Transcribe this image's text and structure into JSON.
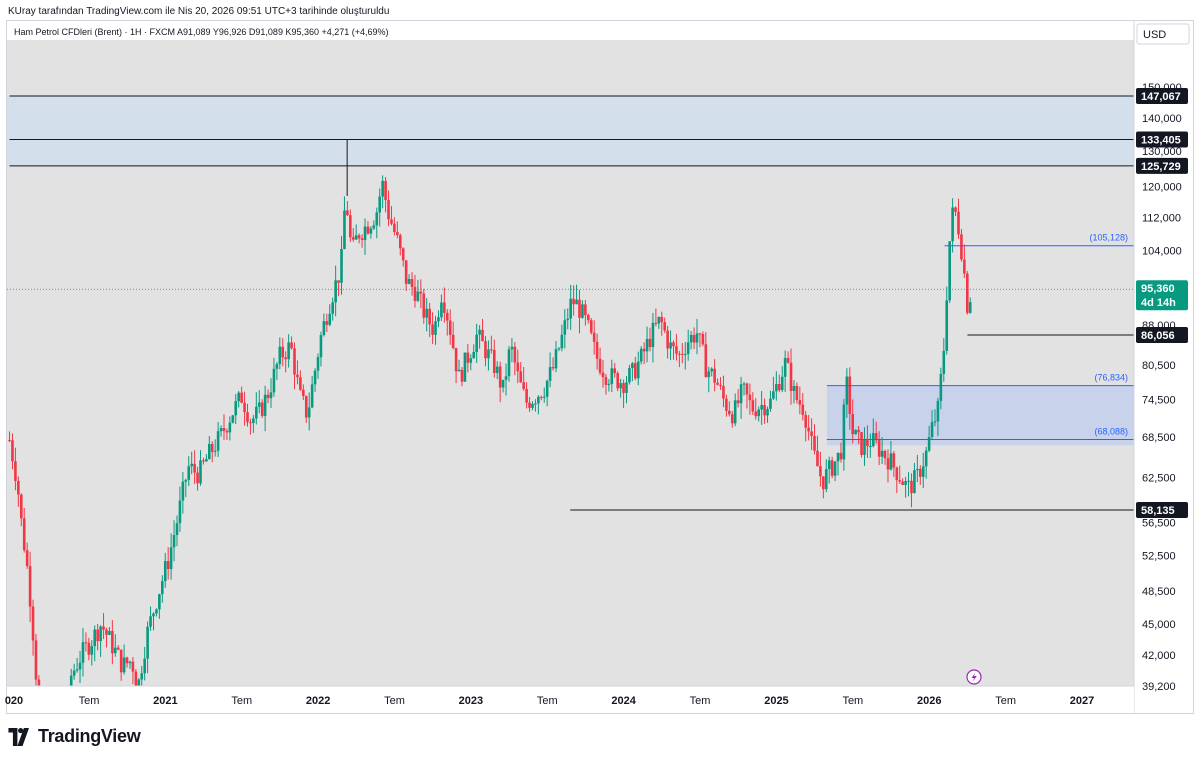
{
  "attribution": "KUray tarafından TradingView.com ile Nis 20, 2026 09:51 UTC+3 tarihinde oluşturuldu",
  "symbol_line": "Ham Petrol CFDleri (Brent) · 1H · FXCM  A91,089  Y96,926  D91,089  K95,360  +4,271 (+4,69%)",
  "currency": "USD",
  "logo_text": "TradingView",
  "colors": {
    "up": "#089981",
    "down": "#f23645",
    "line": "#131722",
    "zone": "#c5d6ea",
    "level": "#2962ff",
    "last_price": "#089981"
  },
  "chart_data": {
    "type": "candlestick",
    "title": "Ham Petrol CFDleri (Brent)",
    "interval": "1H",
    "source": "FXCM",
    "ohlc_header": {
      "open": "91,089",
      "high": "96,926",
      "low": "91,089",
      "close": "95,360",
      "change": "+4,271",
      "change_pct": "+4,69%"
    },
    "y_scale": "log",
    "y_ticks": [
      {
        "value": 150,
        "label": "150,000"
      },
      {
        "value": 140,
        "label": "140,000"
      },
      {
        "value": 130,
        "label": "130,000"
      },
      {
        "value": 120,
        "label": "120,000"
      },
      {
        "value": 112,
        "label": "112,000"
      },
      {
        "value": 104,
        "label": "104,000"
      },
      {
        "value": 88,
        "label": "88,000"
      },
      {
        "value": 80.5,
        "label": "80,500"
      },
      {
        "value": 74.5,
        "label": "74,500"
      },
      {
        "value": 68.5,
        "label": "68,500"
      },
      {
        "value": 62.5,
        "label": "62,500"
      },
      {
        "value": 56.5,
        "label": "56,500"
      },
      {
        "value": 52.5,
        "label": "52,500"
      },
      {
        "value": 48.5,
        "label": "48,500"
      },
      {
        "value": 45,
        "label": "45,000"
      },
      {
        "value": 42,
        "label": "42,000"
      },
      {
        "value": 39.2,
        "label": "39,200"
      }
    ],
    "x_ticks": [
      {
        "year": 2020.0,
        "label": "020",
        "bold": true
      },
      {
        "year": 2020.5,
        "label": "Tem",
        "bold": false
      },
      {
        "year": 2021.0,
        "label": "2021",
        "bold": true
      },
      {
        "year": 2021.5,
        "label": "Tem",
        "bold": false
      },
      {
        "year": 2022.0,
        "label": "2022",
        "bold": true
      },
      {
        "year": 2022.5,
        "label": "Tem",
        "bold": false
      },
      {
        "year": 2023.0,
        "label": "2023",
        "bold": true
      },
      {
        "year": 2023.5,
        "label": "Tem",
        "bold": false
      },
      {
        "year": 2024.0,
        "label": "2024",
        "bold": true
      },
      {
        "year": 2024.5,
        "label": "Tem",
        "bold": false
      },
      {
        "year": 2025.0,
        "label": "2025",
        "bold": true
      },
      {
        "year": 2025.5,
        "label": "Tem",
        "bold": false
      },
      {
        "year": 2026.0,
        "label": "2026",
        "bold": true
      },
      {
        "year": 2026.5,
        "label": "Tem",
        "bold": false
      },
      {
        "year": 2027.0,
        "label": "2027",
        "bold": true
      }
    ],
    "price_tags": [
      {
        "value": 147.067,
        "label": "147,067"
      },
      {
        "value": 133.405,
        "label": "133,405"
      },
      {
        "value": 125.729,
        "label": "125,729"
      },
      {
        "value": 86.056,
        "label": "86,056"
      },
      {
        "value": 58.135,
        "label": "58,135"
      }
    ],
    "last_price": {
      "value": 95.36,
      "label": "95,360",
      "countdown": "4d 14h"
    },
    "zones": [
      {
        "from": 125.729,
        "to": 147.067
      },
      {
        "from": 67.2,
        "to": 76.834
      }
    ],
    "levels": [
      {
        "value": 105.128,
        "label": "(105,128)",
        "x_from": 2026.1
      },
      {
        "value": 76.834,
        "label": "(76,834)",
        "x_from": 2025.33
      },
      {
        "value": 68.088,
        "label": "(68,088)",
        "x_from": 2025.33
      }
    ],
    "lines": [
      {
        "value": 147.067,
        "x_from": 2019.98
      },
      {
        "value": 133.405,
        "x_from": 2019.98
      },
      {
        "value": 125.729,
        "x_from": 2019.98
      },
      {
        "value": 86.056,
        "x_from": 2026.25
      },
      {
        "value": 58.135,
        "x_from": 2023.65
      }
    ],
    "vertical_marks": [
      {
        "year": 2022.19,
        "from": 125.729,
        "to": 133.405
      }
    ],
    "price_path": [
      [
        2019.98,
        68.0
      ],
      [
        2020.03,
        62.0
      ],
      [
        2020.06,
        56.0
      ],
      [
        2020.09,
        52.0
      ],
      [
        2020.12,
        47.0
      ],
      [
        2020.16,
        39.0
      ],
      [
        2020.2,
        30.0
      ],
      [
        2020.25,
        25.0
      ],
      [
        2020.32,
        29.0
      ],
      [
        2020.38,
        40.0
      ],
      [
        2020.45,
        42.0
      ],
      [
        2020.52,
        43.5
      ],
      [
        2020.58,
        45.0
      ],
      [
        2020.65,
        43.0
      ],
      [
        2020.72,
        41.0
      ],
      [
        2020.78,
        41.5
      ],
      [
        2020.82,
        39.0
      ],
      [
        2020.88,
        44.0
      ],
      [
        2020.95,
        48.0
      ],
      [
        2021.02,
        52.0
      ],
      [
        2021.08,
        57.0
      ],
      [
        2021.15,
        64.0
      ],
      [
        2021.22,
        63.0
      ],
      [
        2021.29,
        66.0
      ],
      [
        2021.36,
        68.5
      ],
      [
        2021.43,
        72.0
      ],
      [
        2021.5,
        75.0
      ],
      [
        2021.56,
        71.0
      ],
      [
        2021.62,
        72.5
      ],
      [
        2021.68,
        76.0
      ],
      [
        2021.75,
        82.0
      ],
      [
        2021.82,
        84.0
      ],
      [
        2021.88,
        75.0
      ],
      [
        2021.93,
        72.0
      ],
      [
        2021.97,
        78.0
      ],
      [
        2022.02,
        86.0
      ],
      [
        2022.08,
        93.0
      ],
      [
        2022.15,
        100.0
      ],
      [
        2022.18,
        118.0
      ],
      [
        2022.22,
        103.0
      ],
      [
        2022.26,
        108.0
      ],
      [
        2022.32,
        110.0
      ],
      [
        2022.38,
        113.0
      ],
      [
        2022.42,
        121.0
      ],
      [
        2022.46,
        113.0
      ],
      [
        2022.52,
        106.0
      ],
      [
        2022.58,
        97.0
      ],
      [
        2022.64,
        95.0
      ],
      [
        2022.7,
        90.0
      ],
      [
        2022.76,
        87.0
      ],
      [
        2022.81,
        95.0
      ],
      [
        2022.86,
        88.0
      ],
      [
        2022.92,
        78.0
      ],
      [
        2022.98,
        82.0
      ],
      [
        2023.04,
        86.0
      ],
      [
        2023.1,
        83.0
      ],
      [
        2023.16,
        80.0
      ],
      [
        2023.21,
        76.0
      ],
      [
        2023.26,
        84.0
      ],
      [
        2023.31,
        78.0
      ],
      [
        2023.36,
        74.0
      ],
      [
        2023.42,
        75.0
      ],
      [
        2023.48,
        76.5
      ],
      [
        2023.54,
        80.0
      ],
      [
        2023.6,
        86.0
      ],
      [
        2023.66,
        93.0
      ],
      [
        2023.7,
        92.0
      ],
      [
        2023.76,
        88.0
      ],
      [
        2023.82,
        82.0
      ],
      [
        2023.88,
        79.0
      ],
      [
        2023.94,
        78.0
      ],
      [
        2024.0,
        77.5
      ],
      [
        2024.06,
        79.0
      ],
      [
        2024.12,
        82.0
      ],
      [
        2024.18,
        86.0
      ],
      [
        2024.24,
        89.0
      ],
      [
        2024.3,
        84.0
      ],
      [
        2024.36,
        82.0
      ],
      [
        2024.42,
        85.0
      ],
      [
        2024.48,
        86.5
      ],
      [
        2024.54,
        80.0
      ],
      [
        2024.6,
        78.0
      ],
      [
        2024.66,
        74.0
      ],
      [
        2024.72,
        72.0
      ],
      [
        2024.78,
        76.0
      ],
      [
        2024.84,
        73.0
      ],
      [
        2024.9,
        73.5
      ],
      [
        2024.96,
        74.0
      ],
      [
        2025.02,
        78.0
      ],
      [
        2025.06,
        81.0
      ],
      [
        2025.12,
        75.0
      ],
      [
        2025.18,
        73.0
      ],
      [
        2025.24,
        66.0
      ],
      [
        2025.3,
        62.0
      ],
      [
        2025.36,
        64.0
      ],
      [
        2025.42,
        66.0
      ],
      [
        2025.46,
        77.0
      ],
      [
        2025.5,
        69.0
      ],
      [
        2025.56,
        67.0
      ],
      [
        2025.62,
        68.0
      ],
      [
        2025.68,
        66.5
      ],
      [
        2025.74,
        65.0
      ],
      [
        2025.8,
        63.0
      ],
      [
        2025.86,
        61.0
      ],
      [
        2025.92,
        62.5
      ],
      [
        2025.98,
        66.0
      ],
      [
        2026.02,
        70.0
      ],
      [
        2026.06,
        73.0
      ],
      [
        2026.1,
        85.0
      ],
      [
        2026.13,
        105.0
      ],
      [
        2026.16,
        115.0
      ],
      [
        2026.19,
        110.0
      ],
      [
        2026.22,
        102.0
      ],
      [
        2026.25,
        92.0
      ],
      [
        2026.28,
        95.4
      ]
    ]
  }
}
